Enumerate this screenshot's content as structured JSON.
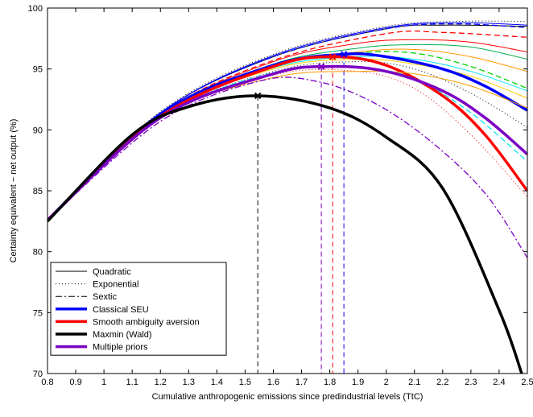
{
  "chart_data": {
    "type": "line",
    "title": "",
    "xlabel": "Cumulative anthropogenic emissions since predindustrial levels (TtC)",
    "ylabel": "Certainty equivalent − net output (%)",
    "xlim": [
      0.8,
      2.5
    ],
    "ylim": [
      70,
      100
    ],
    "xticks": [
      "0.8",
      "0.9",
      "1",
      "1.1",
      "1.2",
      "1.3",
      "1.4",
      "1.5",
      "1.6",
      "1.7",
      "1.8",
      "1.9",
      "2",
      "2.1",
      "2.2",
      "2.3",
      "2.4",
      "2.5"
    ],
    "yticks": [
      "70",
      "75",
      "80",
      "85",
      "90",
      "95",
      "100"
    ],
    "grid": false,
    "legend_position": "bottom-left",
    "legend": [
      {
        "label": "Quadratic",
        "color": "#000000",
        "style": "solid",
        "weight": "thin"
      },
      {
        "label": "Exponential",
        "color": "#000000",
        "style": "dotted",
        "weight": "thin"
      },
      {
        "label": "Sextic",
        "color": "#000000",
        "style": "dashdot",
        "weight": "thin"
      },
      {
        "label": "Classical SEU",
        "color": "#0000ff",
        "style": "solid",
        "weight": "thick"
      },
      {
        "label": "Smooth ambiguity aversion",
        "color": "#ff0000",
        "style": "solid",
        "weight": "thick"
      },
      {
        "label": "Maxmin (Wald)",
        "color": "#000000",
        "style": "solid",
        "weight": "thick"
      },
      {
        "label": "Multiple priors",
        "color": "#7b00c4",
        "style": "solid",
        "weight": "thick"
      }
    ],
    "optima": [
      {
        "name": "Maxmin (Wald)",
        "x": 1.545,
        "y": 92.8,
        "color": "#000000"
      },
      {
        "name": "Multiple priors",
        "x": 1.77,
        "y": 95.2,
        "color": "#7b00c4"
      },
      {
        "name": "Smooth ambiguity aversion",
        "x": 1.81,
        "y": 96.0,
        "color": "#ff0000"
      },
      {
        "name": "Classical SEU",
        "x": 1.85,
        "y": 96.2,
        "color": "#0000ff"
      }
    ],
    "series": [
      {
        "color": "#000000",
        "style": "solid",
        "width": 1,
        "points": [
          [
            0.8,
            82.7
          ],
          [
            1.2,
            91.4
          ],
          [
            1.6,
            96.0
          ],
          [
            2.0,
            98.3
          ],
          [
            2.2,
            98.6
          ],
          [
            2.5,
            98.5
          ]
        ]
      },
      {
        "color": "#000000",
        "style": "dotted",
        "width": 1,
        "points": [
          [
            0.8,
            82.6
          ],
          [
            1.2,
            91.5
          ],
          [
            1.6,
            96.2
          ],
          [
            2.0,
            98.5
          ],
          [
            2.25,
            98.9
          ],
          [
            2.5,
            98.9
          ]
        ]
      },
      {
        "color": "#0000ff",
        "style": "solid",
        "width": 1,
        "points": [
          [
            0.8,
            82.6
          ],
          [
            1.2,
            91.4
          ],
          [
            1.6,
            96.1
          ],
          [
            2.0,
            98.4
          ],
          [
            2.25,
            98.8
          ],
          [
            2.5,
            98.6
          ]
        ]
      },
      {
        "color": "#0000ff",
        "style": "dashed",
        "width": 1.3,
        "points": [
          [
            0.8,
            82.6
          ],
          [
            1.2,
            91.4
          ],
          [
            1.6,
            96.0
          ],
          [
            2.0,
            98.3
          ],
          [
            2.25,
            98.7
          ],
          [
            2.5,
            98.4
          ]
        ]
      },
      {
        "color": "#ff0000",
        "style": "dashed",
        "width": 1.3,
        "points": [
          [
            0.8,
            82.6
          ],
          [
            1.2,
            91.3
          ],
          [
            1.6,
            95.7
          ],
          [
            2.0,
            97.9
          ],
          [
            2.2,
            98.0
          ],
          [
            2.5,
            97.6
          ]
        ]
      },
      {
        "color": "#ff0000",
        "style": "solid",
        "width": 1,
        "points": [
          [
            0.8,
            82.6
          ],
          [
            1.2,
            91.3
          ],
          [
            1.6,
            95.6
          ],
          [
            1.9,
            97.1
          ],
          [
            2.1,
            97.4
          ],
          [
            2.3,
            97.2
          ],
          [
            2.5,
            96.4
          ]
        ]
      },
      {
        "color": "#00b050",
        "style": "solid",
        "width": 1,
        "points": [
          [
            0.8,
            82.6
          ],
          [
            1.2,
            91.2
          ],
          [
            1.6,
            95.4
          ],
          [
            1.9,
            96.7
          ],
          [
            2.1,
            97.0
          ],
          [
            2.3,
            96.8
          ],
          [
            2.5,
            95.8
          ]
        ]
      },
      {
        "color": "#ff9900",
        "style": "solid",
        "width": 1,
        "points": [
          [
            0.8,
            82.6
          ],
          [
            1.2,
            91.2
          ],
          [
            1.6,
            95.3
          ],
          [
            1.9,
            96.4
          ],
          [
            2.1,
            96.6
          ],
          [
            2.3,
            96.0
          ],
          [
            2.5,
            94.8
          ]
        ]
      },
      {
        "color": "#00d000",
        "style": "dashed",
        "width": 1.3,
        "points": [
          [
            0.8,
            82.6
          ],
          [
            1.2,
            91.2
          ],
          [
            1.6,
            95.2
          ],
          [
            1.9,
            96.3
          ],
          [
            2.1,
            96.3
          ],
          [
            2.3,
            95.2
          ],
          [
            2.5,
            93.4
          ]
        ]
      },
      {
        "color": "#00e5ee",
        "style": "solid",
        "width": 1,
        "points": [
          [
            0.8,
            82.6
          ],
          [
            1.2,
            91.2
          ],
          [
            1.6,
            95.1
          ],
          [
            1.9,
            96.0
          ],
          [
            2.1,
            95.8
          ],
          [
            2.3,
            94.8
          ],
          [
            2.5,
            93.2
          ]
        ]
      },
      {
        "color": "#ffcc00",
        "style": "solid",
        "width": 1,
        "points": [
          [
            0.8,
            82.6
          ],
          [
            1.2,
            91.1
          ],
          [
            1.6,
            95.0
          ],
          [
            1.9,
            95.8
          ],
          [
            2.1,
            95.4
          ],
          [
            2.3,
            94.4
          ],
          [
            2.5,
            92.6
          ]
        ]
      },
      {
        "color": "#0000ff",
        "style": "solid",
        "width": 3.5,
        "points": [
          [
            0.8,
            82.6
          ],
          [
            1.2,
            91.3
          ],
          [
            1.6,
            95.3
          ],
          [
            1.85,
            96.2
          ],
          [
            2.0,
            96.0
          ],
          [
            2.2,
            95.0
          ],
          [
            2.35,
            93.6
          ],
          [
            2.5,
            91.6
          ]
        ]
      },
      {
        "color": "#000000",
        "style": "dotted",
        "width": 1,
        "points": [
          [
            0.8,
            82.6
          ],
          [
            1.2,
            91.0
          ],
          [
            1.6,
            94.8
          ],
          [
            1.9,
            95.6
          ],
          [
            2.1,
            95.0
          ],
          [
            2.3,
            93.0
          ],
          [
            2.5,
            90.2
          ]
        ]
      },
      {
        "color": "#00e5ee",
        "style": "dashed",
        "width": 1.3,
        "points": [
          [
            0.8,
            82.6
          ],
          [
            1.2,
            91.0
          ],
          [
            1.6,
            94.7
          ],
          [
            1.9,
            95.1
          ],
          [
            2.1,
            94.2
          ],
          [
            2.3,
            91.4
          ],
          [
            2.5,
            87.4
          ]
        ]
      },
      {
        "color": "#ff0000",
        "style": "dotted",
        "width": 1,
        "points": [
          [
            0.8,
            82.6
          ],
          [
            1.2,
            90.9
          ],
          [
            1.6,
            94.5
          ],
          [
            1.9,
            94.8
          ],
          [
            2.1,
            93.4
          ],
          [
            2.3,
            89.6
          ],
          [
            2.5,
            84.5
          ]
        ]
      },
      {
        "color": "#ff0000",
        "style": "solid",
        "width": 3.5,
        "points": [
          [
            0.8,
            82.6
          ],
          [
            1.2,
            91.1
          ],
          [
            1.6,
            95.2
          ],
          [
            1.81,
            96.0
          ],
          [
            2.0,
            95.3
          ],
          [
            2.2,
            92.8
          ],
          [
            2.35,
            89.6
          ],
          [
            2.5,
            85.0
          ]
        ]
      },
      {
        "color": "#ff9900",
        "style": "solid",
        "width": 1,
        "points": [
          [
            0.8,
            82.6
          ],
          [
            1.2,
            91.0
          ],
          [
            1.6,
            94.3
          ],
          [
            1.9,
            94.8
          ],
          [
            2.1,
            94.6
          ],
          [
            2.3,
            93.6
          ],
          [
            2.5,
            91.8
          ]
        ]
      },
      {
        "color": "#7b00c4",
        "style": "solid",
        "width": 3.5,
        "points": [
          [
            0.8,
            82.6
          ],
          [
            1.2,
            91.0
          ],
          [
            1.6,
            94.6
          ],
          [
            1.8,
            95.2
          ],
          [
            2.0,
            94.8
          ],
          [
            2.2,
            93.2
          ],
          [
            2.35,
            91.0
          ],
          [
            2.5,
            88.0
          ]
        ]
      },
      {
        "color": "#7b00c4",
        "style": "dashdot",
        "width": 1.3,
        "points": [
          [
            0.8,
            82.6
          ],
          [
            1.2,
            90.7
          ],
          [
            1.55,
            94.0
          ],
          [
            1.75,
            94.0
          ],
          [
            1.95,
            92.3
          ],
          [
            2.15,
            89.2
          ],
          [
            2.35,
            84.8
          ],
          [
            2.5,
            79.5
          ]
        ]
      },
      {
        "color": "#000000",
        "style": "solid",
        "width": 3.5,
        "points": [
          [
            0.8,
            82.5
          ],
          [
            1.1,
            89.6
          ],
          [
            1.3,
            91.9
          ],
          [
            1.545,
            92.8
          ],
          [
            1.8,
            91.8
          ],
          [
            2.0,
            89.4
          ],
          [
            2.2,
            85.2
          ],
          [
            2.4,
            75.2
          ],
          [
            2.48,
            70.0
          ]
        ]
      }
    ]
  }
}
